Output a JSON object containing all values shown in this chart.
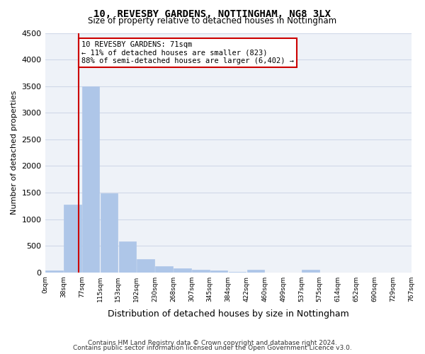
{
  "title1": "10, REVESBY GARDENS, NOTTINGHAM, NG8 3LX",
  "title2": "Size of property relative to detached houses in Nottingham",
  "xlabel": "Distribution of detached houses by size in Nottingham",
  "ylabel": "Number of detached properties",
  "footer1": "Contains HM Land Registry data © Crown copyright and database right 2024.",
  "footer2": "Contains public sector information licensed under the Open Government Licence v3.0.",
  "bin_labels": [
    "0sqm",
    "38sqm",
    "77sqm",
    "115sqm",
    "153sqm",
    "192sqm",
    "230sqm",
    "268sqm",
    "307sqm",
    "345sqm",
    "384sqm",
    "422sqm",
    "460sqm",
    "499sqm",
    "537sqm",
    "575sqm",
    "614sqm",
    "652sqm",
    "690sqm",
    "729sqm",
    "767sqm"
  ],
  "bar_values": [
    40,
    1270,
    3500,
    1480,
    580,
    250,
    120,
    80,
    45,
    30,
    10,
    45,
    0,
    0,
    50,
    0,
    0,
    0,
    0,
    0
  ],
  "bar_color": "#aec6e8",
  "bar_edge_color": "#aec6e8",
  "grid_color": "#d0d8e8",
  "background_color": "#eef2f8",
  "vline_color": "#cc0000",
  "annotation_text": "10 REVESBY GARDENS: 71sqm\n← 11% of detached houses are smaller (823)\n88% of semi-detached houses are larger (6,402) →",
  "annotation_box_color": "#cc0000",
  "ylim": [
    0,
    4500
  ],
  "yticks": [
    0,
    500,
    1000,
    1500,
    2000,
    2500,
    3000,
    3500,
    4000,
    4500
  ]
}
